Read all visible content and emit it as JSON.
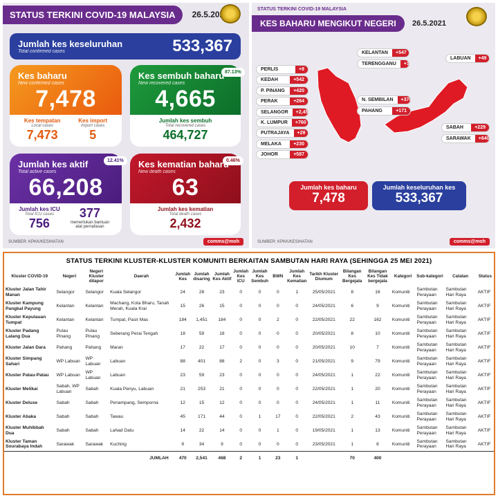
{
  "left": {
    "title": "STATUS TERKINI COVID-19 MALAYSIA",
    "date": "26.5.2021",
    "total": {
      "label": "Jumlah kes keseluruhan",
      "sub": "Total confirmed cases",
      "value": "533,367"
    },
    "new": {
      "label": "Kes baharu",
      "sub": "New confirmed cases",
      "value": "7,478",
      "local_label": "Kes tempatan",
      "local_sub": "Local cases",
      "local_value": "7,473",
      "import_label": "Kes import",
      "import_sub": "Import cases",
      "import_value": "5"
    },
    "recovered": {
      "label": "Kes sembuh baharu",
      "sub": "New recovered cases",
      "value": "4,665",
      "pct": "87.13%",
      "total_label": "Jumlah kes sembuh",
      "total_sub": "Total recovered cases",
      "total_value": "464,727"
    },
    "active": {
      "label": "Jumlah kes aktif",
      "sub": "Total active cases",
      "value": "66,208",
      "pct": "12.41%",
      "icu_label": "Jumlah kes ICU",
      "icu_sub": "Total ICU cases",
      "icu_value": "756",
      "vent_value": "377",
      "vent_label": "memerlukan bantuan alat pernafasan"
    },
    "death": {
      "label": "Kes kematian baharu",
      "sub": "New death cases",
      "value": "63",
      "pct": "0.46%",
      "total_label": "Jumlah kes kematian",
      "total_sub": "Total death cases",
      "total_value": "2,432"
    },
    "source": "SUMBER: KPKK/KESIHATAN",
    "logo": "comms@moh"
  },
  "right": {
    "top_title": "STATUS TERKINI COVID-19 MALAYSIA",
    "title": "KES BAHARU MENGIKUT NEGERI",
    "date": "26.5.2021",
    "states_left": [
      {
        "name": "PERLIS",
        "value": "+8"
      },
      {
        "name": "KEDAH",
        "value": "+542"
      },
      {
        "name": "P. PINANG",
        "value": "+420"
      },
      {
        "name": "PERAK",
        "value": "+264"
      },
      {
        "name": "SELANGOR",
        "value": "+2,455"
      },
      {
        "name": "K. LUMPUR",
        "value": "+760"
      },
      {
        "name": "PUTRAJAYA",
        "value": "+29"
      },
      {
        "name": "MELAKA",
        "value": "+230"
      },
      {
        "name": "JOHOR",
        "value": "+587"
      }
    ],
    "states_mid": [
      {
        "name": "KELANTAN",
        "value": "+547"
      },
      {
        "name": "TERENGGANU",
        "value": "+177"
      }
    ],
    "states_mid2": [
      {
        "name": "N. SEMBILAN",
        "value": "+370"
      },
      {
        "name": "PAHANG",
        "value": "+171"
      }
    ],
    "states_east": [
      {
        "name": "LABUAN",
        "value": "+49"
      },
      {
        "name": "SABAH",
        "value": "+229"
      },
      {
        "name": "SARAWAK",
        "value": "+640"
      }
    ],
    "new_label": "Jumlah kes baharu",
    "new_value": "7,478",
    "total_label": "Jumlah keseluruhan kes",
    "total_value": "533,367",
    "source": "SUMBER: KPKK/KESIHATAN",
    "logo": "comms@moh"
  },
  "table": {
    "title": "STATUS TERKINI KLUSTER-KLUSTER KOMUNITI BERKAITAN SAMBUTAN HARI RAYA (SEHINGGA 25 MEI 2021)",
    "headers": [
      "Kluster COVID-19",
      "Negeri",
      "Negeri Kluster dilapor",
      "Daerah",
      "Jumlah Kes",
      "Jumlah disaring",
      "Jumlah Kes Aktif",
      "Jumlah Kes ICU",
      "Jumlah Kes Sembuh",
      "BWN",
      "Jumlah Kes Kematian",
      "Tarikh Kluster Diumum",
      "Bilangan Kes Bergejala",
      "Bilangan Kes Tidak bergejala",
      "Kategori",
      "Sub-kategori",
      "Catatan",
      "Status"
    ],
    "rows": [
      [
        "Kluster Jalan Tahir Manan",
        "Selangor",
        "Selangor",
        "Kuala Selangor",
        "24",
        "28",
        "23",
        "0",
        "0",
        "0",
        "1",
        "25/05/2021",
        "8",
        "16",
        "Komuniti",
        "Sambutan Perayaan",
        "Sambutan Hari Raya",
        "AKTIF"
      ],
      [
        "Kluster Kampung Pangkal Payung",
        "Kelantan",
        "Kelantan",
        "Machang, Kota Bharu, Tanah Merah, Kuala Krai",
        "15",
        "26",
        "15",
        "0",
        "0",
        "0",
        "0",
        "24/05/2021",
        "6",
        "9",
        "Komuniti",
        "Sambutan Perayaan",
        "Sambutan Hari Raya",
        "AKTIF"
      ],
      [
        "Kluster Kepulauan Tumpat",
        "Kelantan",
        "Kelantan",
        "Tumpat, Pasir Mas",
        "184",
        "1,451",
        "184",
        "0",
        "0",
        "2",
        "0",
        "22/05/2021",
        "22",
        "162",
        "Komuniti",
        "Sambutan Perayaan",
        "Sambutan Hari Raya",
        "AKTIF"
      ],
      [
        "Kluster Padang Lalang Dua",
        "Pulau Pinang",
        "Pulau Pinang",
        "Seberang Perai Tengah",
        "18",
        "59",
        "18",
        "0",
        "0",
        "0",
        "0",
        "20/05/2021",
        "8",
        "10",
        "Komuniti",
        "Sambutan Perayaan",
        "Sambutan Hari Raya",
        "AKTIF"
      ],
      [
        "Kluster Jalan Dara",
        "Pahang",
        "Pahang",
        "Maran",
        "17",
        "22",
        "17",
        "0",
        "0",
        "0",
        "0",
        "20/05/2021",
        "10",
        "7",
        "Komuniti",
        "Sambutan Perayaan",
        "Sambutan Hari Raya",
        "AKTIF"
      ],
      [
        "Kluster Simpang Sahari",
        "WP Labuan",
        "WP Labuan",
        "Labuan",
        "88",
        "401",
        "88",
        "2",
        "0",
        "3",
        "0",
        "21/05/2021",
        "9",
        "79",
        "Komuniti",
        "Sambutan Perayaan",
        "Sambutan Hari Raya",
        "AKTIF"
      ],
      [
        "Kluster Patau-Patau",
        "WP Labuan",
        "WP Labuan",
        "Labuan",
        "23",
        "59",
        "23",
        "0",
        "0",
        "0",
        "0",
        "24/05/2021",
        "1",
        "22",
        "Komuniti",
        "Sambutan Perayaan",
        "Sambutan Hari Raya",
        "AKTIF"
      ],
      [
        "Kluster Melikai",
        "Sabah, WP Labuan",
        "Sabah",
        "Kuala Penyu, Labuan",
        "21",
        "253",
        "21",
        "0",
        "0",
        "0",
        "0",
        "22/05/2021",
        "1",
        "20",
        "Komuniti",
        "Sambutan Perayaan",
        "Sambutan Hari Raya",
        "AKTIF"
      ],
      [
        "Kluster Deluse",
        "Sabah",
        "Sabah",
        "Penampang, Semporna",
        "12",
        "15",
        "12",
        "0",
        "0",
        "0",
        "0",
        "24/05/2021",
        "1",
        "11",
        "Komuniti",
        "Sambutan Perayaan",
        "Sambutan Hari Raya",
        "AKTIF"
      ],
      [
        "Kluster Abaka",
        "Sabah",
        "Sabah",
        "Tawau",
        "45",
        "171",
        "44",
        "0",
        "1",
        "17",
        "0",
        "22/05/2021",
        "2",
        "43",
        "Komuniti",
        "Sambutan Perayaan",
        "Sambutan Hari Raya",
        "AKTIF"
      ],
      [
        "Kluster Muhibbah Dua",
        "Sabah",
        "Sabah",
        "Lahad Datu",
        "14",
        "22",
        "14",
        "0",
        "0",
        "1",
        "0",
        "19/05/2021",
        "1",
        "13",
        "Komuniti",
        "Sambutan Perayaan",
        "Sambutan Hari Raya",
        "AKTIF"
      ],
      [
        "Kluster Taman Sourabaya Indah",
        "Sarawak",
        "Sarawak",
        "Kuching",
        "9",
        "34",
        "9",
        "0",
        "0",
        "0",
        "0",
        "23/05/2021",
        "1",
        "8",
        "Komuniti",
        "Sambutan Perayaan",
        "Sambutan Hari Raya",
        "AKTIF"
      ]
    ],
    "total_label": "JUMLAH",
    "totals": [
      "470",
      "2,541",
      "468",
      "2",
      "1",
      "23",
      "1",
      "",
      "70",
      "400"
    ]
  }
}
